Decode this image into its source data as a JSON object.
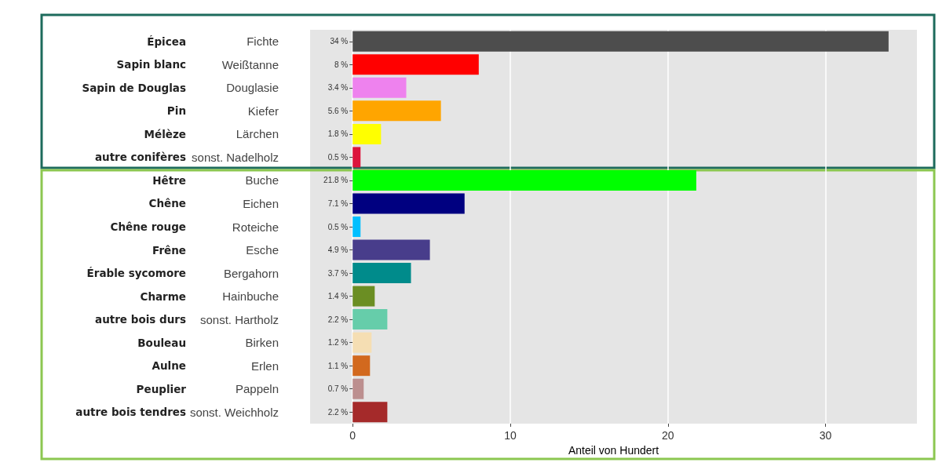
{
  "chart_data": {
    "type": "bar",
    "orientation": "horizontal",
    "xlabel": "Anteil von Hundert",
    "categories": [
      "Fichte",
      "Weißtanne",
      "Douglasie",
      "Kiefer",
      "Lärchen",
      "sonst. Nadelholz",
      "Buche",
      "Eichen",
      "Roteiche",
      "Esche",
      "Bergahorn",
      "Hainbuche",
      "sonst. Hartholz",
      "Birken",
      "Erlen",
      "Pappeln",
      "sonst. Weichholz"
    ],
    "y2_categories": [
      "Épicea",
      "Sapin blanc",
      "Sapin de Douglas",
      "Pin",
      "Mélèze",
      "autre conifères",
      "Hêtre",
      "Chêne",
      "Chêne rouge",
      "Frêne",
      "Érable sycomore",
      "Charme",
      "autre bois durs",
      "Bouleau",
      "Aulne",
      "Peuplier",
      "autre bois tendres"
    ],
    "values": [
      34,
      8,
      3.4,
      5.6,
      1.8,
      0.5,
      21.8,
      7.1,
      0.5,
      4.9,
      3.7,
      1.4,
      2.2,
      1.2,
      1.1,
      0.7,
      2.2
    ],
    "value_labels": [
      "34 %",
      "8 %",
      "3.4 %",
      "5.6 %",
      "1.8 %",
      "0.5 %",
      "21.8 %",
      "7.1 %",
      "0.5 %",
      "4.9 %",
      "3.7 %",
      "1.4 %",
      "2.2 %",
      "1.2 %",
      "1.1 %",
      "0.7 %",
      "2.2 %"
    ],
    "colors": [
      "#4d4d4d",
      "#ff0000",
      "#ee82ee",
      "#ffa500",
      "#ffff00",
      "#dc143c",
      "#00ff00",
      "#000080",
      "#00bfff",
      "#483d8b",
      "#008b8b",
      "#6b8e23",
      "#66cdaa",
      "#f5deb3",
      "#d2691e",
      "#bc8f8f",
      "#a52a2a"
    ],
    "xlim": [
      -2.7,
      35.8
    ],
    "xticks": [
      0,
      10,
      20,
      30
    ],
    "grid": "x"
  }
}
